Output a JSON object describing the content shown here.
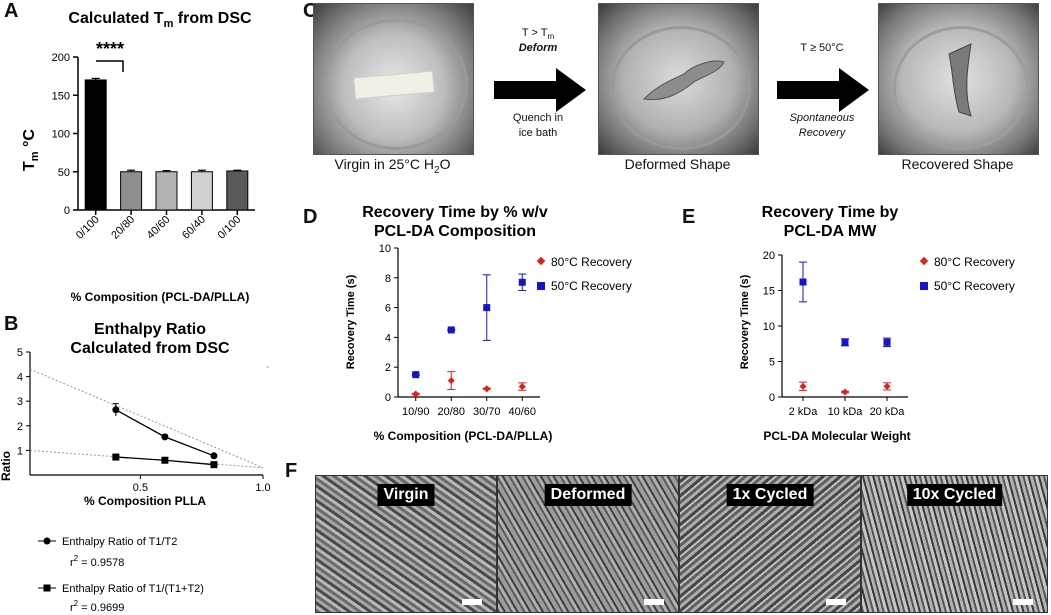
{
  "panels": {
    "A": {
      "letter": "A",
      "title": "Calculated T",
      "title_sub": "m",
      "title_rest": " from DSC",
      "ylabel": "T",
      "ylabel_sub": "m",
      "ylabel_rest": " °C",
      "xlabel": "% Composition (PCL-DA/PLLA)",
      "significance": "****"
    },
    "B": {
      "letter": "B",
      "title_line1": "Enthalpy Ratio",
      "title_line2": "Calculated from DSC",
      "ylabel": "Ratio",
      "xlabel": "% Composition PLLA",
      "legend": [
        {
          "label": "Enthalpy Ratio of T1/T2",
          "r2_prefix": "r",
          "r2_sup": "2",
          "r2_value": " = 0.9578"
        },
        {
          "label": "Enthalpy Ratio of T1/(T1+T2)",
          "r2_prefix": "r",
          "r2_sup": "2",
          "r2_value": " = 0.9699"
        }
      ]
    },
    "C": {
      "letter": "C",
      "captions": [
        "Virgin in 25°C H",
        "Deformed Shape",
        "Recovered Shape"
      ],
      "caption1_sub": "2",
      "caption1_rest": "O",
      "arrow1_top": "T > T",
      "arrow1_top_sub": "m",
      "arrow1_bold": "Deform",
      "arrow1_bottom1": "Quench in",
      "arrow1_bottom2": "ice bath",
      "arrow2_top": "T ≥ 50°C",
      "arrow2_bottom1": "Spontaneous",
      "arrow2_bottom2": "Recovery"
    },
    "D": {
      "letter": "D",
      "title_line1": "Recovery Time by % w/v",
      "title_line2": "PCL-DA Composition",
      "ylabel": "Recovery Time (s)",
      "xlabel": "% Composition (PCL-DA/PLLA)"
    },
    "E": {
      "letter": "E",
      "title_line1": "Recovery Time by",
      "title_line2": "PCL-DA MW",
      "ylabel": "Recovery Time (s)",
      "xlabel": "PCL-DA Molecular Weight"
    },
    "F": {
      "letter": "F",
      "labels": [
        "Virgin",
        "Deformed",
        "1x Cycled",
        "10x Cycled"
      ]
    }
  },
  "colors": {
    "red": "#e0201b",
    "blue": "#1414c8",
    "bar_colors": [
      "#000000",
      "#8f8f8f",
      "#b4b4b4",
      "#d0d0d0",
      "#5a5a5a"
    ]
  },
  "chart_data": [
    {
      "id": "A",
      "type": "bar",
      "categories": [
        "0/100",
        "20/80",
        "40/60",
        "60/40",
        "0/100"
      ],
      "values": [
        170,
        50,
        50,
        50,
        51
      ],
      "errors": [
        2,
        2,
        1.5,
        2,
        1
      ],
      "ylim": [
        0,
        200
      ],
      "yticks": [
        0,
        50,
        100,
        150,
        200
      ]
    },
    {
      "id": "B",
      "type": "line",
      "xlim": [
        0.05,
        1.0
      ],
      "ylim": [
        0,
        5
      ],
      "xticks": [
        0.5,
        1.0
      ],
      "xtick_labels": [
        "0.5",
        "1.0"
      ],
      "yticks": [
        1,
        2,
        3,
        4,
        5
      ],
      "series": [
        {
          "x": [
            0.4,
            0.6,
            0.8
          ],
          "y": [
            2.65,
            1.55,
            0.78
          ],
          "err": [
            0.25,
            0.08,
            0.05
          ],
          "fit": {
            "x": [
              0.05,
              1.0
            ],
            "y": [
              4.3,
              0.3
            ]
          }
        },
        {
          "x": [
            0.4,
            0.6,
            0.8
          ],
          "y": [
            0.73,
            0.6,
            0.42
          ],
          "err": [
            0.03,
            0.03,
            0.03
          ],
          "fit": {
            "x": [
              0.05,
              1.0
            ],
            "y": [
              1.0,
              0.3
            ]
          }
        }
      ]
    },
    {
      "id": "D",
      "type": "scatter",
      "categories": [
        "10/90",
        "20/80",
        "30/70",
        "40/60"
      ],
      "ylim": [
        0,
        10
      ],
      "yticks": [
        0,
        2,
        4,
        6,
        8,
        10
      ],
      "series": [
        {
          "name": "80°C Recovery",
          "values": [
            0.2,
            1.1,
            0.55,
            0.7
          ],
          "err": [
            0.05,
            0.6,
            0.05,
            0.25
          ]
        },
        {
          "name": "50°C Recovery",
          "values": [
            1.5,
            4.5,
            6.0,
            7.7
          ],
          "err": [
            0.05,
            0.05,
            2.2,
            0.55
          ]
        }
      ]
    },
    {
      "id": "E",
      "type": "scatter",
      "categories": [
        "2 kDa",
        "10 kDa",
        "20 kDa"
      ],
      "ylim": [
        0,
        20
      ],
      "yticks": [
        0,
        5,
        10,
        15,
        20
      ],
      "series": [
        {
          "name": "80°C Recovery",
          "values": [
            1.5,
            0.7,
            1.5
          ],
          "err": [
            0.6,
            0.1,
            0.5
          ]
        },
        {
          "name": "50°C Recovery",
          "values": [
            16.2,
            7.7,
            7.7
          ],
          "err": [
            2.8,
            0.5,
            0.6
          ]
        }
      ]
    }
  ]
}
